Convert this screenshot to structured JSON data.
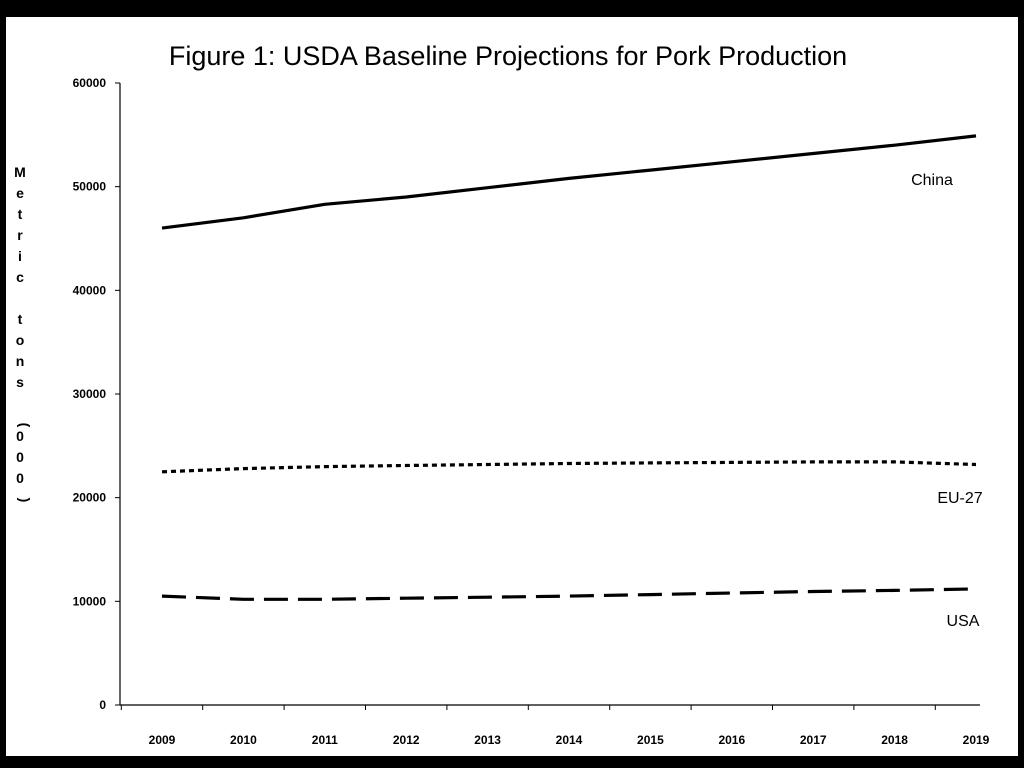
{
  "chart_data": {
    "type": "line",
    "title": "Figure 1: USDA Baseline Projections for Pork Production",
    "xlabel": "",
    "ylabel": "Metric tons (000)",
    "ylim": [
      0,
      60000
    ],
    "yticks": [
      "0",
      "10000",
      "20000",
      "30000",
      "40000",
      "50000",
      "60000"
    ],
    "categories": [
      "2009",
      "2010",
      "2011",
      "2012",
      "2013",
      "2014",
      "2015",
      "2016",
      "2017",
      "2018",
      "2019"
    ],
    "grid": false,
    "series": [
      {
        "name": "China",
        "style": "solid",
        "values": [
          46000,
          47000,
          48300,
          49000,
          49900,
          50800,
          51600,
          52400,
          53200,
          54000,
          54900
        ]
      },
      {
        "name": "EU-27",
        "style": "dotted",
        "values": [
          22500,
          22800,
          23000,
          23100,
          23200,
          23300,
          23350,
          23400,
          23450,
          23450,
          23200
        ]
      },
      {
        "name": "USA",
        "style": "dashed",
        "values": [
          10500,
          10200,
          10200,
          10300,
          10400,
          10500,
          10650,
          10800,
          10950,
          11050,
          11200
        ]
      }
    ],
    "colors": {
      "line": "#000000",
      "background": "#ffffff",
      "frame": "#000000"
    }
  }
}
